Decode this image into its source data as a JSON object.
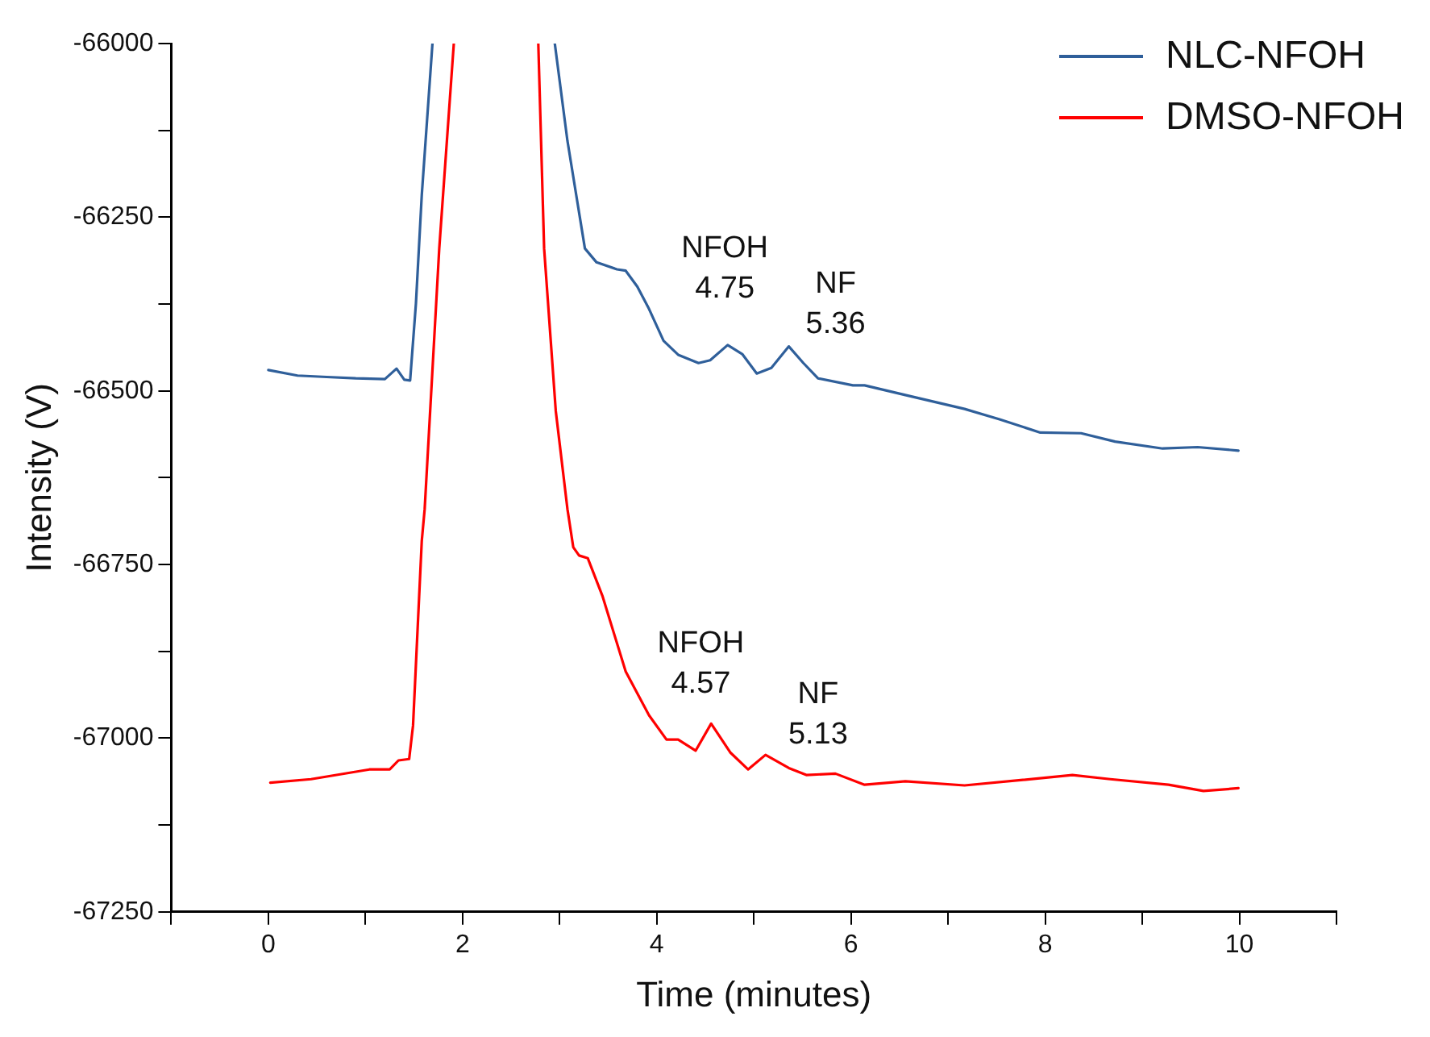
{
  "chart_data": {
    "type": "line",
    "xlabel": "Time (minutes)",
    "ylabel": "Intensity (V)",
    "xlim": [
      -1,
      11
    ],
    "xticks": [
      {
        "value": -1,
        "label": null
      },
      0,
      {
        "value": 1,
        "label": null
      },
      2,
      {
        "value": 3,
        "label": null
      },
      4,
      {
        "value": 5,
        "label": null
      },
      6,
      {
        "value": 7,
        "label": null
      },
      8,
      {
        "value": 9,
        "label": null
      },
      10,
      {
        "value": 11,
        "label": null
      }
    ],
    "ylim": [
      -67250,
      -66000
    ],
    "yticks": [
      -67250,
      {
        "value": -67125,
        "label": null
      },
      -67000,
      {
        "value": -66875,
        "label": null
      },
      -66750,
      {
        "value": -66625,
        "label": null
      },
      -66500,
      {
        "value": -66375,
        "label": null
      },
      -66250,
      {
        "value": -66125,
        "label": null
      },
      -66000
    ],
    "grid": false,
    "legend": "top right",
    "marker": "none",
    "line_style": "solid",
    "series": [
      {
        "name": "NLC-NFOH",
        "color": "#2f5f9a",
        "x": [
          0,
          0.3,
          0.6,
          0.9,
          1.2,
          1.32,
          1.4,
          1.46,
          1.52,
          1.58,
          1.69,
          2.3,
          2.95,
          3.08,
          3.26,
          3.38,
          3.59,
          3.68,
          3.8,
          3.92,
          4.07,
          4.22,
          4.43,
          4.55,
          4.73,
          4.88,
          5.03,
          5.18,
          5.36,
          5.51,
          5.66,
          6.02,
          6.14,
          6.56,
          7.17,
          7.53,
          7.95,
          8.37,
          8.72,
          9.21,
          9.57,
          9.99
        ],
        "values": [
          -66470,
          -66478,
          -66480,
          -66482,
          -66483,
          -66468,
          -66484,
          -66485,
          -66374,
          -66218,
          -66000,
          null,
          -66000,
          -66140,
          -66295,
          -66315,
          -66325,
          -66327,
          -66350,
          -66382,
          -66428,
          -66448,
          -66460,
          -66456,
          -66434,
          -66447,
          -66475,
          -66467,
          -66436,
          -66460,
          -66482,
          -66492,
          -66492,
          -66506,
          -66526,
          -66541,
          -66560,
          -66561,
          -66573,
          -66583,
          -66581,
          -66586
        ]
      },
      {
        "name": "DMSO-NFOH",
        "color": "#ff0000",
        "x": [
          0.02,
          0.44,
          1.04,
          1.25,
          1.34,
          1.45,
          1.49,
          1.58,
          1.61,
          1.76,
          1.91,
          2.35,
          2.78,
          2.84,
          2.96,
          3.08,
          3.14,
          3.2,
          3.29,
          3.44,
          3.68,
          3.92,
          4.1,
          4.22,
          4.4,
          4.56,
          4.76,
          4.94,
          5.12,
          5.36,
          5.54,
          5.84,
          6.14,
          6.56,
          7.17,
          7.77,
          8.28,
          8.67,
          9.27,
          9.63,
          9.99
        ],
        "values": [
          -67064,
          -67059,
          -67045,
          -67045,
          -67032,
          -67030,
          -66982,
          -66716,
          -66670,
          -66295,
          -66000,
          null,
          -66000,
          -66295,
          -66529,
          -66670,
          -66725,
          -66737,
          -66741,
          -66795,
          -66904,
          -66967,
          -67002,
          -67002,
          -67018,
          -66979,
          -67021,
          -67045,
          -67024,
          -67043,
          -67053,
          -67051,
          -67067,
          -67062,
          -67068,
          -67060,
          -67053,
          -67059,
          -67067,
          -67076,
          -67072
        ]
      }
    ],
    "annotations": [
      {
        "text": "NFOH\n4.75",
        "x": 4.75,
        "y": -66434
      },
      {
        "text": "NF\n5.36",
        "x": 5.36,
        "y": -66436
      },
      {
        "text": "NFOH\n4.57",
        "x": 4.57,
        "y": -66979
      },
      {
        "text": "NF\n5.13",
        "x": 5.13,
        "y": -67024
      }
    ]
  }
}
